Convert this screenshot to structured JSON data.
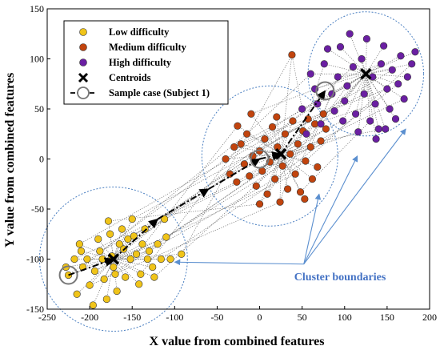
{
  "chart_data": {
    "type": "scatter",
    "xlabel": "X value from combined features",
    "ylabel": "Y value from combined features",
    "xlim": [
      -250,
      200
    ],
    "ylim": [
      -150,
      150
    ],
    "xticks": [
      "-250",
      "-200",
      "-150",
      "-100",
      "-50",
      "0",
      "50",
      "100",
      "150",
      "200"
    ],
    "yticks": [
      "-150",
      "-100",
      "-50",
      "0",
      "50",
      "100",
      "150"
    ],
    "grid": false,
    "legend_position": "top-left",
    "legend": [
      {
        "label": "Low difficulty",
        "marker": "circle",
        "color": "#f0c419"
      },
      {
        "label": "Medium difficulty",
        "marker": "circle",
        "color": "#c1440e"
      },
      {
        "label": "High difficulty",
        "marker": "circle",
        "color": "#6a1fa2"
      },
      {
        "label": "Centroids",
        "marker": "x",
        "color": "#000000"
      },
      {
        "label": "Sample case (Subject 1)",
        "marker": "dash-dot-ring",
        "color": "#000000"
      }
    ],
    "series": [
      {
        "name": "Low difficulty",
        "color": "#f0c419",
        "points": [
          [
            -225,
            -116
          ],
          [
            -215,
            -135
          ],
          [
            -208,
            -108
          ],
          [
            -210,
            -92
          ],
          [
            -212,
            -85
          ],
          [
            -203,
            -100
          ],
          [
            -200,
            -126
          ],
          [
            -196,
            -146
          ],
          [
            -194,
            -112
          ],
          [
            -190,
            -80
          ],
          [
            -188,
            -92
          ],
          [
            -185,
            -100
          ],
          [
            -183,
            -120
          ],
          [
            -180,
            -140
          ],
          [
            -178,
            -62
          ],
          [
            -176,
            -75
          ],
          [
            -174,
            -97
          ],
          [
            -172,
            -108
          ],
          [
            -170,
            -115
          ],
          [
            -168,
            -132
          ],
          [
            -165,
            -85
          ],
          [
            -162,
            -70
          ],
          [
            -160,
            -90
          ],
          [
            -158,
            -118
          ],
          [
            -155,
            -80
          ],
          [
            -152,
            -100
          ],
          [
            -150,
            -60
          ],
          [
            -148,
            -77
          ],
          [
            -145,
            -95
          ],
          [
            -142,
            -125
          ],
          [
            -140,
            -115
          ],
          [
            -138,
            -85
          ],
          [
            -135,
            -70
          ],
          [
            -132,
            -100
          ],
          [
            -130,
            -92
          ],
          [
            -126,
            -108
          ],
          [
            -124,
            -118
          ],
          [
            -120,
            -85
          ],
          [
            -116,
            -100
          ],
          [
            -112,
            -60
          ],
          [
            -110,
            -78
          ],
          [
            -105,
            -100
          ],
          [
            -92,
            -95
          ],
          [
            -228,
            -108
          ],
          [
            -218,
            -100
          ]
        ]
      },
      {
        "name": "Medium difficulty",
        "color": "#c1440e",
        "points": [
          [
            -40,
            0
          ],
          [
            -35,
            -15
          ],
          [
            -30,
            12
          ],
          [
            -27,
            -23
          ],
          [
            -22,
            15
          ],
          [
            -18,
            -5
          ],
          [
            -15,
            25
          ],
          [
            -12,
            -17
          ],
          [
            -8,
            3
          ],
          [
            -4,
            -27
          ],
          [
            0,
            8
          ],
          [
            3,
            -12
          ],
          [
            6,
            20
          ],
          [
            9,
            -35
          ],
          [
            12,
            -3
          ],
          [
            15,
            32
          ],
          [
            18,
            -20
          ],
          [
            21,
            12
          ],
          [
            24,
            -43
          ],
          [
            27,
            -7
          ],
          [
            30,
            25
          ],
          [
            33,
            -30
          ],
          [
            36,
            5
          ],
          [
            39,
            38
          ],
          [
            42,
            -15
          ],
          [
            45,
            15
          ],
          [
            48,
            -33
          ],
          [
            51,
            28
          ],
          [
            54,
            -2
          ],
          [
            57,
            40
          ],
          [
            60,
            12
          ],
          [
            62,
            -20
          ],
          [
            65,
            35
          ],
          [
            68,
            -8
          ],
          [
            72,
            18
          ],
          [
            75,
            45
          ],
          [
            78,
            30
          ],
          [
            53,
            -40
          ],
          [
            -10,
            45
          ],
          [
            20,
            42
          ],
          [
            38,
            104
          ],
          [
            -26,
            33
          ],
          [
            0,
            -45
          ]
        ]
      },
      {
        "name": "High difficulty",
        "color": "#6a1fa2",
        "points": [
          [
            50,
            50
          ],
          [
            55,
            25
          ],
          [
            60,
            85
          ],
          [
            65,
            70
          ],
          [
            68,
            55
          ],
          [
            72,
            35
          ],
          [
            76,
            95
          ],
          [
            80,
            110
          ],
          [
            85,
            65
          ],
          [
            88,
            48
          ],
          [
            92,
            82
          ],
          [
            95,
            112
          ],
          [
            98,
            38
          ],
          [
            100,
            58
          ],
          [
            103,
            73
          ],
          [
            106,
            125
          ],
          [
            110,
            92
          ],
          [
            113,
            45
          ],
          [
            116,
            27
          ],
          [
            120,
            100
          ],
          [
            123,
            65
          ],
          [
            126,
            120
          ],
          [
            130,
            38
          ],
          [
            133,
            82
          ],
          [
            136,
            55
          ],
          [
            140,
            30
          ],
          [
            143,
            95
          ],
          [
            146,
            113
          ],
          [
            150,
            70
          ],
          [
            153,
            50
          ],
          [
            156,
            89
          ],
          [
            160,
            40
          ],
          [
            163,
            75
          ],
          [
            166,
            103
          ],
          [
            170,
            60
          ],
          [
            174,
            82
          ],
          [
            179,
            95
          ],
          [
            183,
            107
          ],
          [
            148,
            30
          ],
          [
            137,
            20
          ]
        ]
      }
    ],
    "centroids": [
      [
        -172,
        -100
      ],
      [
        25,
        5
      ],
      [
        125,
        85
      ]
    ],
    "sample_case": [
      [
        -225,
        -116
      ],
      [
        0,
        0
      ],
      [
        77,
        68
      ]
    ],
    "sample_path": [
      [
        -225,
        -116
      ],
      [
        -172,
        -100
      ],
      [
        -120,
        -60
      ],
      [
        -60,
        -30
      ],
      [
        0,
        0
      ],
      [
        25,
        5
      ],
      [
        77,
        68
      ]
    ],
    "cluster_boundaries": [
      {
        "center": [
          -172,
          -100
        ],
        "radius_x": 87,
        "radius_y": 72
      },
      {
        "center": [
          12,
          3
        ],
        "radius_x": 80,
        "radius_y": 70
      },
      {
        "center": [
          125,
          85
        ],
        "radius_x": 68,
        "radius_y": 62
      }
    ],
    "annotation": {
      "text": "Cluster boundaries",
      "color": "#4472c4",
      "anchor": [
        52,
        -105
      ],
      "targets": [
        [
          -100,
          -103
        ],
        [
          70,
          -35
        ],
        [
          115,
          3
        ],
        [
          172,
          30
        ]
      ]
    }
  }
}
